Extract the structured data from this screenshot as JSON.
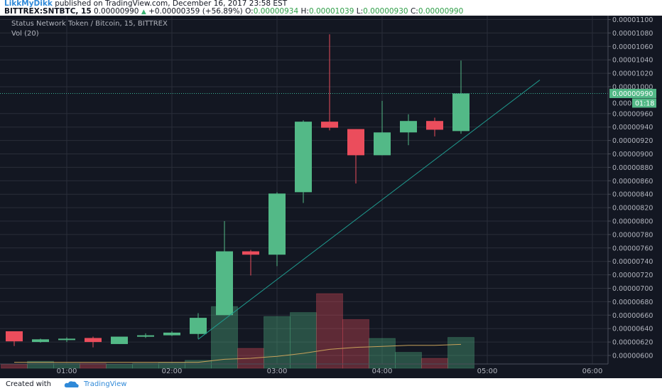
{
  "header": {
    "author": "LikkMyDikk",
    "published": "published on TradingView.com, December 16, 2017 23:58 EST",
    "symbol": "BITTREX:SNTBTC, 15",
    "last": "0.00000990",
    "change": "+0.00000359 (+56.89%)",
    "o_label": "O:",
    "o_value": "0.00000934",
    "h_label": "H:",
    "h_value": "0.00001039",
    "l_label": "L:",
    "l_value": "0.00000930",
    "c_label": "C:",
    "c_value": "0.00000990"
  },
  "chart_labels": {
    "title": "Status Network Token / Bitcoin, 15, BITTREX",
    "volume_indicator": "Vol (20)",
    "price_badge": "0.00000990",
    "countdown_badge": "01:18",
    "price_badge_partial": "0.000"
  },
  "footer": {
    "created_with": "Created with",
    "brand": "TradingView"
  },
  "colors": {
    "background": "#131722",
    "up": "#53b987",
    "down": "#eb4d5c",
    "grid": "#2a2e39",
    "trendline": "#1f9a8e",
    "vol_ma": "#c8a15a",
    "price_line": "#3bb297",
    "brand": "#2f89d8"
  },
  "chart_data": {
    "type": "candlestick",
    "title": "Status Network Token / Bitcoin, 15, BITTREX",
    "x_ticks": [
      "01:00",
      "02:00",
      "03:00",
      "04:00",
      "05:00",
      "06:00"
    ],
    "y_ticks": [
      "0.00000600",
      "0.00000620",
      "0.00000640",
      "0.00000660",
      "0.00000680",
      "0.00000700",
      "0.00000720",
      "0.00000740",
      "0.00000760",
      "0.00000780",
      "0.00000800",
      "0.00000820",
      "0.00000840",
      "0.00000860",
      "0.00000880",
      "0.00000900",
      "0.00000920",
      "0.00000940",
      "0.00000960",
      "0.00001000",
      "0.00001020",
      "0.00001040",
      "0.00001060",
      "0.00001080",
      "0.00001100"
    ],
    "ylim": [
      5.9e-06,
      1.105e-05
    ],
    "candles": [
      {
        "t": "00:30",
        "o": 6.36e-06,
        "h": 6.36e-06,
        "l": 6.14e-06,
        "c": 6.21e-06
      },
      {
        "t": "00:45",
        "o": 6.2e-06,
        "h": 6.25e-06,
        "l": 6.19e-06,
        "c": 6.24e-06
      },
      {
        "t": "01:00",
        "o": 6.23e-06,
        "h": 6.27e-06,
        "l": 6.2e-06,
        "c": 6.25e-06
      },
      {
        "t": "01:15",
        "o": 6.26e-06,
        "h": 6.28e-06,
        "l": 6.12e-06,
        "c": 6.2e-06
      },
      {
        "t": "01:30",
        "o": 6.17e-06,
        "h": 6.28e-06,
        "l": 6.17e-06,
        "c": 6.28e-06
      },
      {
        "t": "01:45",
        "o": 6.29e-06,
        "h": 6.33e-06,
        "l": 6.26e-06,
        "c": 6.3e-06
      },
      {
        "t": "02:00",
        "o": 6.3e-06,
        "h": 6.36e-06,
        "l": 6.29e-06,
        "c": 6.34e-06
      },
      {
        "t": "02:15",
        "o": 6.32e-06,
        "h": 6.63e-06,
        "l": 6.25e-06,
        "c": 6.56e-06
      },
      {
        "t": "02:30",
        "o": 6.6e-06,
        "h": 8e-06,
        "l": 6.6e-06,
        "c": 7.55e-06
      },
      {
        "t": "02:45",
        "o": 7.55e-06,
        "h": 7.57e-06,
        "l": 7.19e-06,
        "c": 7.5e-06
      },
      {
        "t": "03:00",
        "o": 7.5e-06,
        "h": 8.43e-06,
        "l": 7.33e-06,
        "c": 8.41e-06
      },
      {
        "t": "03:15",
        "o": 8.43e-06,
        "h": 9.5e-06,
        "l": 8.27e-06,
        "c": 9.48e-06
      },
      {
        "t": "03:30",
        "o": 9.48e-06,
        "h": 1.078e-05,
        "l": 9.35e-06,
        "c": 9.39e-06
      },
      {
        "t": "03:45",
        "o": 9.37e-06,
        "h": 9.37e-06,
        "l": 8.56e-06,
        "c": 8.98e-06
      },
      {
        "t": "04:00",
        "o": 8.98e-06,
        "h": 9.79e-06,
        "l": 8.98e-06,
        "c": 9.32e-06
      },
      {
        "t": "04:15",
        "o": 9.32e-06,
        "h": 9.59e-06,
        "l": 9.13e-06,
        "c": 9.49e-06
      },
      {
        "t": "04:30",
        "o": 9.49e-06,
        "h": 9.54e-06,
        "l": 9.26e-06,
        "c": 9.36e-06
      },
      {
        "t": "04:45",
        "o": 9.34e-06,
        "h": 1.039e-05,
        "l": 9.3e-06,
        "c": 9.9e-06
      }
    ],
    "volume": [
      0.04,
      0.07,
      0.05,
      0.05,
      0.04,
      0.05,
      0.06,
      0.08,
      0.62,
      0.2,
      0.52,
      0.56,
      0.75,
      0.49,
      0.3,
      0.16,
      0.1,
      0.31
    ],
    "volume_ma": [
      0.06,
      0.06,
      0.06,
      0.06,
      0.06,
      0.06,
      0.06,
      0.06,
      0.09,
      0.1,
      0.12,
      0.15,
      0.19,
      0.21,
      0.22,
      0.23,
      0.23,
      0.24
    ],
    "trendline": {
      "start": {
        "t": "02:15",
        "price": 6.24e-06
      },
      "end": {
        "t": "05:30",
        "price": 1.01e-05
      }
    },
    "last_price": 9.9e-06
  }
}
